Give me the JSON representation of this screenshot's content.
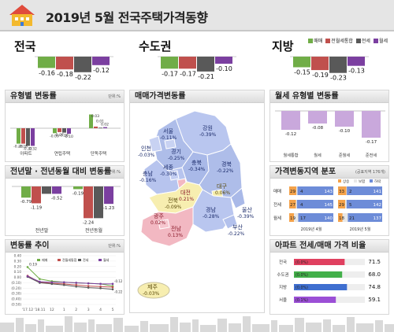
{
  "header": {
    "title": "2019년 5월 전국주택가격동향"
  },
  "legend": [
    {
      "label": "매매",
      "color": "#70ad47"
    },
    {
      "label": "전월세통합",
      "color": "#c0504d"
    },
    {
      "label": "전세",
      "color": "#595959"
    },
    {
      "label": "월세",
      "color": "#7b3fa0"
    }
  ],
  "regions": [
    {
      "name": "전국",
      "values": [
        "-0.16",
        "-0.18",
        "-0.22",
        "-0.12"
      ]
    },
    {
      "name": "수도권",
      "values": [
        "-0.17",
        "-0.17",
        "-0.21",
        "-0.10"
      ]
    },
    {
      "name": "지방",
      "values": [
        "-0.15",
        "-0.19",
        "-0.23",
        "-0.13"
      ]
    }
  ],
  "panels": {
    "type_change": {
      "title": "유형별 변동률",
      "unit": "단위:%"
    },
    "year_change": {
      "title": "전년말 · 전년동월 대비 변동률",
      "unit": "단위:%"
    },
    "trend": {
      "title": "변동률 추이",
      "unit": "단위:%"
    },
    "map": {
      "title": "매매가격변동률"
    },
    "rent_type": {
      "title": "월세 유형별 변동률"
    },
    "distribution": {
      "title": "가격변동지역 분포",
      "unit": "(공표지역 176개)"
    },
    "ratio": {
      "title": "아파트 전세/매매 가격 비율"
    }
  },
  "chart_data": [
    {
      "type": "bar",
      "title": "유형별 변동률",
      "categories": [
        "아파트",
        "연립주택",
        "단독주택"
      ],
      "series": [
        {
          "name": "매매",
          "values": [
            -0.28,
            -0.09,
            0.25
          ]
        },
        {
          "name": "전월세통합",
          "values": [
            -0.28,
            -0.07,
            0.03
          ]
        },
        {
          "name": "전세",
          "values": [
            -0.32,
            -0.08,
            0.01
          ]
        },
        {
          "name": "월세",
          "values": [
            -0.32,
            -0.1,
            0.02
          ]
        }
      ],
      "value_labels": [
        [
          "-0.28",
          "-0.28",
          "-0.32",
          "-0.32"
        ],
        [
          "-0.09",
          "-0.07",
          "-0.08",
          "-0.10"
        ],
        [
          "0.25",
          "0.03",
          "0.01",
          "0.02"
        ]
      ]
    },
    {
      "type": "bar",
      "title": "전년말 · 전년동월 대비 변동률",
      "categories": [
        "전년말",
        "전년동월"
      ],
      "series": [
        {
          "name": "매매",
          "values": [
            -0.79,
            -0.19
          ]
        },
        {
          "name": "전월세통합",
          "values": [
            -1.19,
            -2.24
          ]
        },
        {
          "name": "전세",
          "values": [
            -0.52,
            -2.24
          ]
        },
        {
          "name": "월세",
          "values": [
            -0.52,
            -1.23
          ]
        }
      ],
      "value_labels": [
        [
          "-0.79",
          "-1.19",
          "-0.52"
        ],
        [
          "-0.19",
          "-2.24",
          "-1.23"
        ]
      ]
    },
    {
      "type": "line",
      "title": "변동률 추이",
      "x": [
        "'17.12",
        "'18.11",
        "12",
        "1",
        "2",
        "3",
        "4",
        "5"
      ],
      "yticks": [
        "0.40",
        "0.30",
        "0.20",
        "0.10",
        "0.00",
        "(0.10)",
        "(0.20)",
        "(0.30)",
        "(0.40)",
        "(0.50)"
      ],
      "ylim": [
        -0.5,
        0.4
      ],
      "series": [
        {
          "name": "매매",
          "values": [
            0.19,
            -0.03,
            -0.07,
            -0.09,
            -0.1,
            -0.11,
            -0.12,
            -0.16
          ]
        },
        {
          "name": "전월세통합",
          "values": [
            0.03,
            -0.09,
            -0.11,
            -0.12,
            -0.14,
            -0.16,
            -0.17,
            -0.18
          ]
        },
        {
          "name": "전세",
          "values": [
            0.01,
            -0.1,
            -0.12,
            -0.14,
            -0.17,
            -0.19,
            -0.2,
            -0.22
          ]
        },
        {
          "name": "월세",
          "values": [
            0.02,
            -0.08,
            -0.09,
            -0.09,
            -0.1,
            -0.11,
            -0.12,
            -0.12
          ]
        }
      ],
      "point_labels": [
        "0.19",
        "-0.09",
        "-0.12",
        "-0.17",
        "-0.16",
        "-0.12",
        "-0.12",
        "-0.22"
      ]
    },
    {
      "type": "bar",
      "title": "월세 유형별 변동률",
      "categories": [
        "월세통합",
        "월세",
        "준월세",
        "준전세"
      ],
      "values": [
        -0.12,
        -0.08,
        -0.1,
        -0.17
      ],
      "value_labels": [
        "-0.12",
        "-0.08",
        "-0.10",
        "-0.17"
      ]
    }
  ],
  "map": {
    "regions": [
      {
        "name": "서울",
        "value": "-0.11%"
      },
      {
        "name": "인천",
        "value": "-0.03%"
      },
      {
        "name": "경기",
        "value": "-0.25%"
      },
      {
        "name": "강원",
        "value": "-0.39%"
      },
      {
        "name": "세종",
        "value": "-0.30%"
      },
      {
        "name": "충북",
        "value": "-0.34%"
      },
      {
        "name": "충남",
        "value": "-0.16%"
      },
      {
        "name": "대전",
        "value": "0.21%"
      },
      {
        "name": "경북",
        "value": "-0.22%"
      },
      {
        "name": "대구",
        "value": "0.06%"
      },
      {
        "name": "전북",
        "value": "-0.09%"
      },
      {
        "name": "울산",
        "value": "-0.39%"
      },
      {
        "name": "경남",
        "value": "-0.28%"
      },
      {
        "name": "광주",
        "value": "0.02%"
      },
      {
        "name": "전남",
        "value": "0.13%"
      },
      {
        "name": "부산",
        "value": "-0.22%"
      },
      {
        "name": "제주",
        "value": "-0.03%"
      }
    ]
  },
  "distribution": {
    "legend": [
      "상승",
      "보합",
      "하락"
    ],
    "rows": [
      {
        "label": "매매",
        "april": [
          "29",
          "4",
          "143"
        ],
        "may": [
          "33",
          "2",
          "141"
        ]
      },
      {
        "label": "전세",
        "april": [
          "27",
          "4",
          "145"
        ],
        "may": [
          "29",
          "5",
          "142"
        ]
      },
      {
        "label": "월세",
        "april": [
          "19",
          "17",
          "140"
        ],
        "may": [
          "18",
          "21",
          "137"
        ]
      }
    ],
    "columns": [
      "2019년 4월",
      "2019년 5월"
    ]
  },
  "ratio": {
    "rows": [
      {
        "label": "전국",
        "pct": "(0.0%)",
        "value": "71.5",
        "color": "#e04060"
      },
      {
        "label": "수도권",
        "pct": "(0.0%)",
        "value": "68.0",
        "color": "#43b04a"
      },
      {
        "label": "지방",
        "pct": "(0.0%)",
        "value": "74.8",
        "color": "#3f6fd0"
      },
      {
        "label": "서울",
        "pct": "(0.1%)",
        "value": "59.1",
        "color": "#9b4fd6"
      }
    ]
  }
}
